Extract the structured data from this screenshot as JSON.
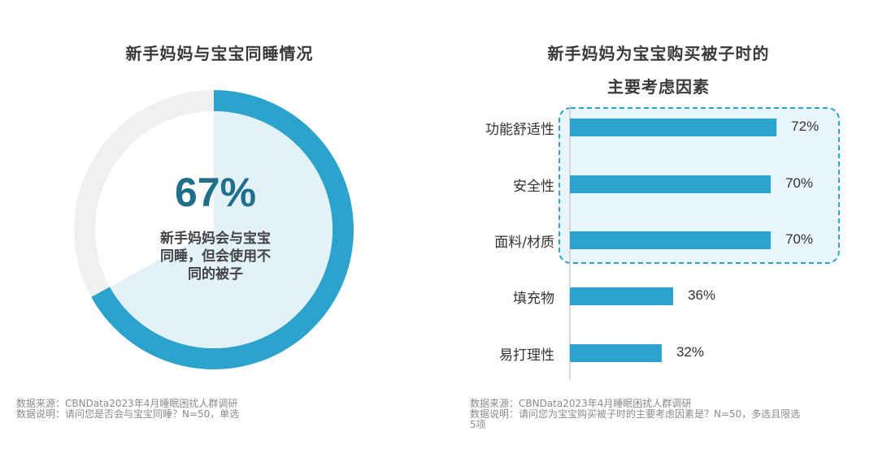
{
  "left": {
    "title": "新手妈妈与宝宝同睡情况",
    "center_value": "67%",
    "center_desc_lines": [
      "新手妈妈会与宝宝",
      "同睡，但会使用不",
      "同的被子"
    ],
    "footer_lines": [
      "数据来源：CBNData2023年4月睡眠困扰人群调研",
      "数据说明：请问您是否会与宝宝同睡？N=50，单选"
    ]
  },
  "right": {
    "title_lines": [
      "新手妈妈为宝宝购买被子时的",
      "主要考虑因素"
    ],
    "footer_lines": [
      "数据来源：CBNData2023年4月睡眠困扰人群调研",
      "数据说明：请问您为宝宝购买被子时的主要考虑因素是？N=50，多选且限选",
      "5项"
    ]
  },
  "colors": {
    "accent": "#2ba3cc",
    "ring_bg": "#f0f0f0",
    "inner_fill": "#e3f2f9",
    "highlight_fill": "#e8f5fb",
    "highlight_border": "#2ba3cc",
    "pct_text": "#1f6e8c"
  },
  "chart_data": [
    {
      "type": "pie",
      "title": "新手妈妈与宝宝同睡情况",
      "categories": [
        "新手妈妈会与宝宝同睡，但会使用不同的被子",
        ""
      ],
      "values": [
        67,
        33
      ],
      "unit": "%"
    },
    {
      "type": "bar",
      "orientation": "horizontal",
      "title": "新手妈妈为宝宝购买被子时的主要考虑因素",
      "categories": [
        "功能舒适性",
        "安全性",
        "面料/材质",
        "填充物",
        "易打理性"
      ],
      "values": [
        72,
        70,
        70,
        36,
        32
      ],
      "value_labels": [
        "72%",
        "70%",
        "70%",
        "36%",
        "32%"
      ],
      "unit": "%",
      "highlighted_categories": [
        "功能舒适性",
        "安全性",
        "面料/材质"
      ],
      "xlim": [
        0,
        100
      ]
    }
  ]
}
